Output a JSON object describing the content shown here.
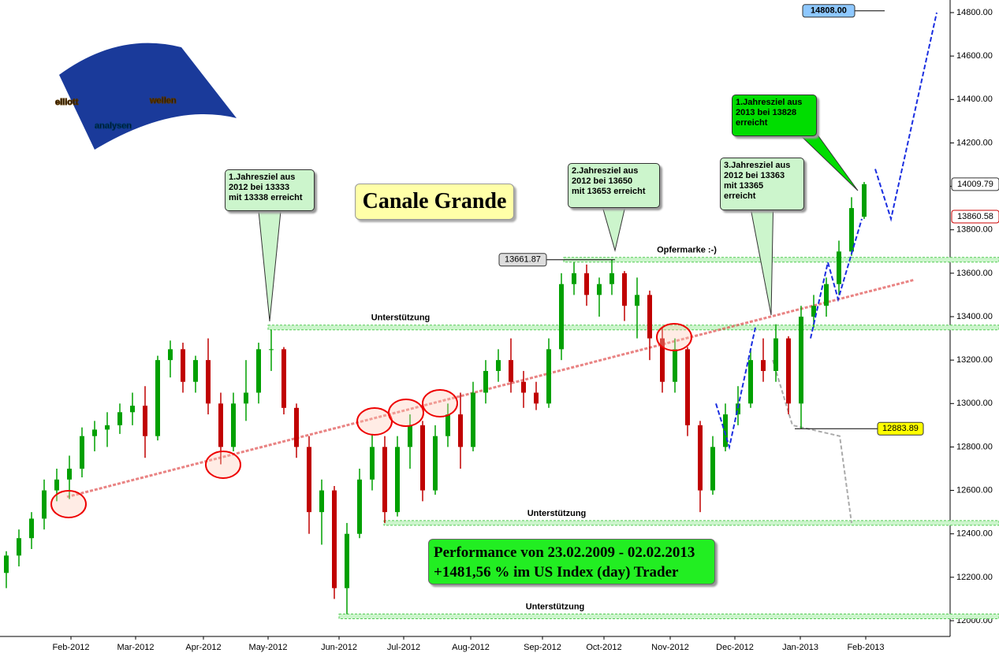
{
  "chart_data": {
    "type": "candlestick",
    "title": "Canale Grande",
    "logo": [
      "elliott",
      "wellen",
      "analysen"
    ],
    "performance": [
      "Performance von 23.02.2009 - 02.02.2013",
      "+1481,56 % im US Index (day) Trader"
    ],
    "x_labels": [
      "Feb-2012",
      "Mar-2012",
      "Apr-2012",
      "May-2012",
      "Jun-2012",
      "Jul-2012",
      "Aug-2012",
      "Sep-2012",
      "Oct-2012",
      "Nov-2012",
      "Dec-2012",
      "Jan-2013",
      "Feb-2013"
    ],
    "ylim": [
      12000,
      14800
    ],
    "yticks": [
      {
        "value": 12000,
        "label": "12000.00"
      },
      {
        "value": 12200,
        "label": "12200.00"
      },
      {
        "value": 12400,
        "label": "12400.00"
      },
      {
        "value": 12600,
        "label": "12600.00"
      },
      {
        "value": 12800,
        "label": "12800.00"
      },
      {
        "value": 13000,
        "label": "13000.00"
      },
      {
        "value": 13200,
        "label": "13200.00"
      },
      {
        "value": 13400,
        "label": "13400.00"
      },
      {
        "value": 13600,
        "label": "13600.00"
      },
      {
        "value": 13800,
        "label": "13800.00"
      },
      {
        "value": 14000,
        "label": "14000.00"
      },
      {
        "value": 14200,
        "label": "14200.00"
      },
      {
        "value": 14400,
        "label": "14400.00"
      },
      {
        "value": 14600,
        "label": "14600.00"
      },
      {
        "value": 14800,
        "label": "14800.00"
      }
    ],
    "up_color": "#00a000",
    "down_color": "#c00000",
    "candles": [
      [
        12220,
        12320,
        12150,
        12300
      ],
      [
        12300,
        12420,
        12250,
        12380
      ],
      [
        12380,
        12500,
        12330,
        12470
      ],
      [
        12470,
        12650,
        12420,
        12600
      ],
      [
        12600,
        12700,
        12550,
        12650
      ],
      [
        12650,
        12760,
        12560,
        12700
      ],
      [
        12700,
        12890,
        12660,
        12850
      ],
      [
        12850,
        12920,
        12780,
        12880
      ],
      [
        12880,
        12960,
        12800,
        12900
      ],
      [
        12900,
        13000,
        12860,
        12960
      ],
      [
        12960,
        13050,
        12900,
        12990
      ],
      [
        12990,
        13080,
        12750,
        12850
      ],
      [
        12850,
        13220,
        12830,
        13200
      ],
      [
        13200,
        13290,
        13120,
        13250
      ],
      [
        13250,
        13280,
        13050,
        13100
      ],
      [
        13100,
        13220,
        13050,
        13200
      ],
      [
        13200,
        13300,
        12950,
        13000
      ],
      [
        13000,
        13050,
        12720,
        12800
      ],
      [
        12800,
        13050,
        12780,
        13000
      ],
      [
        13000,
        13200,
        12920,
        13050
      ],
      [
        13050,
        13280,
        13000,
        13250
      ],
      [
        13250,
        13340,
        13150,
        13250
      ],
      [
        13250,
        13260,
        12950,
        12980
      ],
      [
        12980,
        13000,
        12750,
        12800
      ],
      [
        12800,
        12850,
        12400,
        12500
      ],
      [
        12500,
        12650,
        12350,
        12600
      ],
      [
        12600,
        12620,
        12100,
        12150
      ],
      [
        12150,
        12450,
        12030,
        12400
      ],
      [
        12400,
        12700,
        12380,
        12650
      ],
      [
        12650,
        12860,
        12600,
        12800
      ],
      [
        12800,
        12850,
        12450,
        12500
      ],
      [
        12500,
        12850,
        12480,
        12800
      ],
      [
        12800,
        12950,
        12700,
        12900
      ],
      [
        12900,
        12920,
        12550,
        12600
      ],
      [
        12600,
        12900,
        12580,
        12850
      ],
      [
        12850,
        13000,
        12800,
        12950
      ],
      [
        12950,
        13050,
        12700,
        12800
      ],
      [
        12800,
        13100,
        12780,
        13050
      ],
      [
        13050,
        13200,
        13000,
        13150
      ],
      [
        13150,
        13250,
        13100,
        13200
      ],
      [
        13200,
        13300,
        13050,
        13100
      ],
      [
        13100,
        13150,
        12980,
        13050
      ],
      [
        13050,
        13100,
        12970,
        13000
      ],
      [
        13000,
        13300,
        12980,
        13250
      ],
      [
        13250,
        13600,
        13200,
        13550
      ],
      [
        13550,
        13650,
        13500,
        13600
      ],
      [
        13600,
        13640,
        13450,
        13500
      ],
      [
        13500,
        13580,
        13400,
        13550
      ],
      [
        13550,
        13662,
        13500,
        13600
      ],
      [
        13600,
        13610,
        13380,
        13450
      ],
      [
        13450,
        13580,
        13300,
        13500
      ],
      [
        13500,
        13520,
        13200,
        13300
      ],
      [
        13300,
        13350,
        13050,
        13100
      ],
      [
        13100,
        13300,
        13050,
        13250
      ],
      [
        13250,
        13260,
        12850,
        12900
      ],
      [
        12900,
        12920,
        12500,
        12600
      ],
      [
        12600,
        12850,
        12580,
        12800
      ],
      [
        12800,
        13000,
        12780,
        12950
      ],
      [
        12950,
        13080,
        12900,
        13000
      ],
      [
        13000,
        13250,
        12980,
        13200
      ],
      [
        13200,
        13300,
        13100,
        13150
      ],
      [
        13150,
        13365,
        13100,
        13300
      ],
      [
        13300,
        13310,
        12950,
        13000
      ],
      [
        13000,
        13450,
        12884,
        13400
      ],
      [
        13400,
        13500,
        13350,
        13450
      ],
      [
        13450,
        13580,
        13400,
        13550
      ],
      [
        13550,
        13750,
        13500,
        13700
      ],
      [
        13700,
        13950,
        13680,
        13900
      ],
      [
        13860,
        14020,
        13850,
        14009.79
      ]
    ],
    "levels": [
      {
        "name": "Unterstützung",
        "value": 13350
      },
      {
        "name": "Opfermarke :-)",
        "value": 13661.87
      },
      {
        "name": "Unterstützung",
        "value": 12450
      },
      {
        "name": "Unterstützung",
        "value": 12020
      }
    ],
    "channel": [
      12570,
      13570
    ],
    "projection": [
      [
        13000,
        12800,
        13350
      ],
      [
        13300,
        13650,
        13480,
        13850
      ],
      [
        14080,
        13850,
        14800
      ]
    ],
    "gray_path": [
      13200,
      12900,
      12850,
      12450
    ],
    "price_tags": [
      {
        "value": 14808,
        "label": "14808.00"
      },
      {
        "value": 14009.79,
        "label": "14009.79"
      },
      {
        "value": 13860.58,
        "label": "13860.58"
      },
      {
        "value": 13661.87,
        "label": "13661.87"
      },
      {
        "value": 12883.89,
        "label": "12883.89"
      }
    ],
    "callouts": [
      [
        "1.Jahresziel aus",
        "2012 bei 13333",
        "mit 13338 erreicht"
      ],
      [
        "2.Jahresziel aus",
        "2012 bei 13650",
        "mit 13653 erreicht"
      ],
      [
        "3.Jahresziel aus",
        "2012 bei 13363",
        "mit 13365",
        "erreicht"
      ],
      [
        "1.Jahresziel aus",
        "2013 bei 13828",
        "erreicht"
      ]
    ]
  }
}
